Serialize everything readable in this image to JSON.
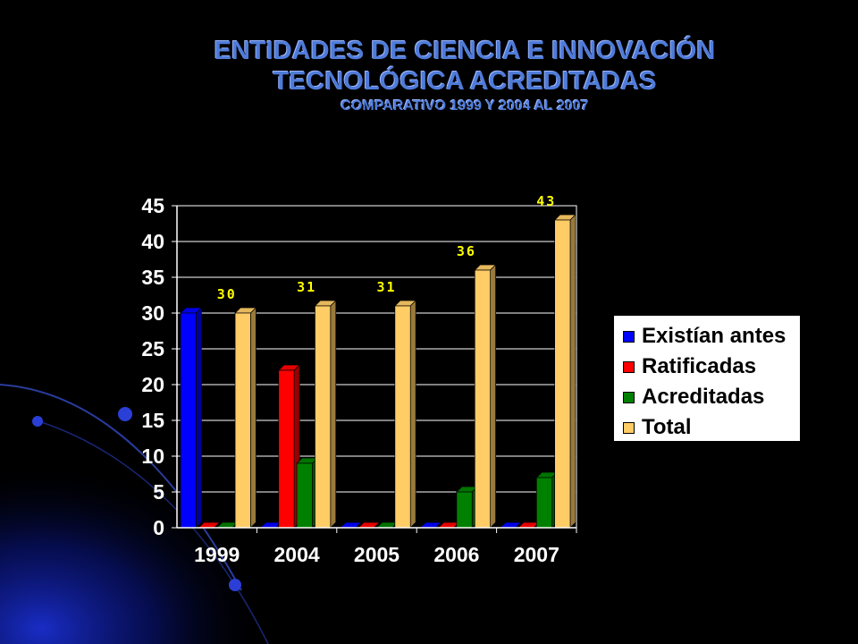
{
  "title": {
    "line1": "ENTIDADES DE CIENCIA E INNOVACIÓN",
    "line2": "TECNOLÓGICA ACREDITADAS",
    "line3": "COMPARATIVO 1999 Y 2004  AL 2007"
  },
  "chart_data": {
    "type": "bar",
    "categories": [
      "1999",
      "2004",
      "2005",
      "2006",
      "2007"
    ],
    "series": [
      {
        "name": "Existían antes",
        "color": "#0000ff",
        "values": [
          30,
          0,
          0,
          0,
          0
        ]
      },
      {
        "name": "Ratificadas",
        "color": "#ff0000",
        "values": [
          0,
          22,
          0,
          0,
          0
        ]
      },
      {
        "name": "Acreditadas",
        "color": "#008000",
        "values": [
          0,
          9,
          0,
          5,
          7
        ]
      },
      {
        "name": "Total",
        "color": "#ffcc66",
        "values": [
          30,
          31,
          31,
          36,
          43
        ]
      }
    ],
    "data_labels": [
      "30",
      "31",
      "31",
      "36",
      "43"
    ],
    "data_label_color": "#ffff00",
    "yticks": [
      "0",
      "5",
      "10",
      "15",
      "20",
      "25",
      "30",
      "35",
      "40",
      "45"
    ],
    "ylim": [
      0,
      45
    ],
    "grid": true,
    "legend": "right",
    "plot_background": "#000000"
  }
}
